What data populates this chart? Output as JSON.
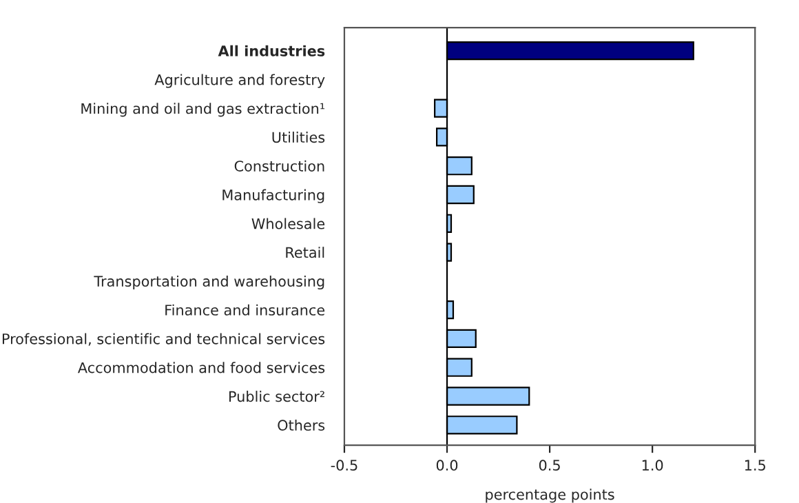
{
  "chart_data": {
    "type": "bar",
    "orientation": "horizontal",
    "xlabel": "percentage points",
    "categories": [
      "All industries",
      "Agriculture and forestry",
      "Mining and oil and gas extraction¹",
      "Utilities",
      "Construction",
      "Manufacturing",
      "Wholesale",
      "Retail",
      "Transportation and warehousing",
      "Finance and insurance",
      "Professional, scientific and technical services",
      "Accommodation and food services",
      "Public sector²",
      "Others"
    ],
    "values": [
      1.2,
      0,
      -0.06,
      -0.05,
      0.12,
      0.13,
      0.02,
      0.02,
      0,
      0.03,
      0.14,
      0.12,
      0.4,
      0.34
    ],
    "colors": [
      "#000080",
      "#99ccff",
      "#99ccff",
      "#99ccff",
      "#99ccff",
      "#99ccff",
      "#99ccff",
      "#99ccff",
      "#99ccff",
      "#99ccff",
      "#99ccff",
      "#99ccff",
      "#99ccff",
      "#99ccff"
    ],
    "xlim": [
      -0.5,
      1.5
    ],
    "xticks": [
      {
        "value": -0.5,
        "label": "-0.5"
      },
      {
        "value": 0,
        "label": "0.0"
      },
      {
        "value": 0.5,
        "label": "0.5"
      },
      {
        "value": 1,
        "label": "1.0"
      },
      {
        "value": 1.5,
        "label": "1.5"
      }
    ],
    "ref_lines": [
      {
        "axis": "x",
        "value": 0,
        "color": "#000000"
      }
    ],
    "legend": false
  }
}
